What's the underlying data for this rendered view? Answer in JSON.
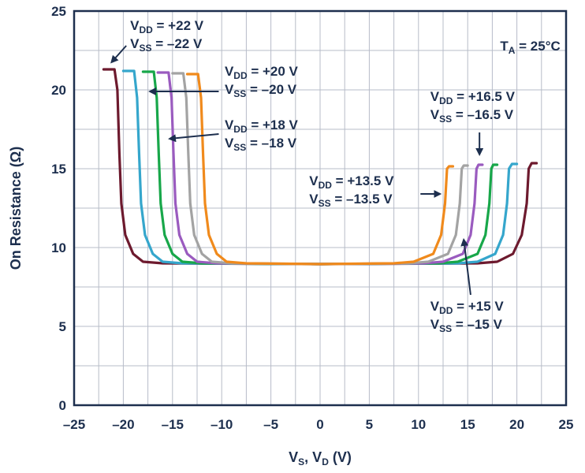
{
  "chart_data": {
    "type": "line",
    "xlabel": {
      "main": "V",
      "sub1": "S",
      "mid": ", V",
      "sub2": "D",
      "unit": " (V)"
    },
    "ylabel": "On Resistance (Ω)",
    "xlim": [
      -25,
      25
    ],
    "ylim": [
      0,
      25
    ],
    "xticks": [
      -25,
      -20,
      -15,
      -10,
      -5,
      0,
      5,
      10,
      15,
      20,
      25
    ],
    "xtick_labels": [
      "–25",
      "–20",
      "–15",
      "–10",
      "–5",
      "0",
      "5",
      "10",
      "15",
      "20",
      "25"
    ],
    "yticks": [
      0,
      5,
      10,
      15,
      20,
      25
    ],
    "ytick_labels": [
      "0",
      "5",
      "10",
      "15",
      "20",
      "25"
    ],
    "grid": true,
    "temperature": {
      "main": "T",
      "sub": "A",
      "rest": " = 25°C"
    },
    "series": [
      {
        "supply": 22,
        "color": "#6d1a2e",
        "points": [
          [
            -22,
            21.3
          ],
          [
            -20.9,
            21.3
          ],
          [
            -20.6,
            20.0
          ],
          [
            -20.4,
            16.0
          ],
          [
            -20.2,
            12.8
          ],
          [
            -19.8,
            10.8
          ],
          [
            -19.0,
            9.6
          ],
          [
            -18.0,
            9.1
          ],
          [
            -16.0,
            9.0
          ],
          [
            0,
            8.95
          ],
          [
            16.0,
            9.0
          ],
          [
            18.0,
            9.1
          ],
          [
            19.6,
            9.6
          ],
          [
            20.5,
            10.8
          ],
          [
            21.0,
            12.8
          ],
          [
            21.2,
            15.0
          ],
          [
            21.5,
            15.35
          ],
          [
            22,
            15.35
          ]
        ]
      },
      {
        "supply": 20,
        "color": "#35a6cc",
        "points": [
          [
            -20,
            21.2
          ],
          [
            -18.9,
            21.2
          ],
          [
            -18.6,
            19.5
          ],
          [
            -18.4,
            16.0
          ],
          [
            -18.2,
            12.8
          ],
          [
            -17.8,
            10.8
          ],
          [
            -17.0,
            9.6
          ],
          [
            -16.0,
            9.1
          ],
          [
            -14.0,
            9.0
          ],
          [
            0,
            8.95
          ],
          [
            14.0,
            9.0
          ],
          [
            16.0,
            9.1
          ],
          [
            17.8,
            9.6
          ],
          [
            18.6,
            10.8
          ],
          [
            19.0,
            12.8
          ],
          [
            19.2,
            15.0
          ],
          [
            19.5,
            15.3
          ],
          [
            20,
            15.3
          ]
        ]
      },
      {
        "supply": 18,
        "color": "#18a74a",
        "points": [
          [
            -18,
            21.15
          ],
          [
            -16.9,
            21.15
          ],
          [
            -16.6,
            19.5
          ],
          [
            -16.4,
            16.0
          ],
          [
            -16.2,
            12.8
          ],
          [
            -15.8,
            10.8
          ],
          [
            -15.0,
            9.6
          ],
          [
            -14.0,
            9.1
          ],
          [
            -12.0,
            9.0
          ],
          [
            0,
            8.95
          ],
          [
            12.0,
            9.0
          ],
          [
            14.0,
            9.1
          ],
          [
            16.0,
            9.6
          ],
          [
            16.8,
            10.8
          ],
          [
            17.2,
            12.8
          ],
          [
            17.4,
            15.0
          ],
          [
            17.6,
            15.25
          ],
          [
            18,
            15.25
          ]
        ]
      },
      {
        "supply": 16.5,
        "color": "#9a5bbf",
        "points": [
          [
            -16.5,
            21.1
          ],
          [
            -15.4,
            21.1
          ],
          [
            -15.1,
            19.5
          ],
          [
            -14.9,
            16.0
          ],
          [
            -14.7,
            12.8
          ],
          [
            -14.3,
            10.8
          ],
          [
            -13.5,
            9.6
          ],
          [
            -12.5,
            9.1
          ],
          [
            -10.5,
            9.0
          ],
          [
            0,
            8.95
          ],
          [
            10.5,
            9.0
          ],
          [
            12.5,
            9.1
          ],
          [
            14.5,
            9.6
          ],
          [
            15.3,
            10.8
          ],
          [
            15.7,
            12.8
          ],
          [
            15.9,
            15.0
          ],
          [
            16.1,
            15.25
          ],
          [
            16.5,
            15.25
          ]
        ]
      },
      {
        "supply": 15,
        "color": "#a3a3a3",
        "points": [
          [
            -15,
            21.05
          ],
          [
            -13.9,
            21.05
          ],
          [
            -13.6,
            19.5
          ],
          [
            -13.4,
            16.0
          ],
          [
            -13.2,
            12.8
          ],
          [
            -12.8,
            10.8
          ],
          [
            -12.0,
            9.6
          ],
          [
            -11.0,
            9.1
          ],
          [
            -9.0,
            9.0
          ],
          [
            0,
            8.95
          ],
          [
            9.0,
            9.0
          ],
          [
            11.0,
            9.1
          ],
          [
            13.0,
            9.6
          ],
          [
            13.8,
            10.8
          ],
          [
            14.2,
            12.8
          ],
          [
            14.4,
            15.0
          ],
          [
            14.6,
            15.2
          ],
          [
            15,
            15.2
          ]
        ]
      },
      {
        "supply": 13.5,
        "color": "#f08a1c",
        "points": [
          [
            -13.5,
            21.0
          ],
          [
            -12.4,
            21.0
          ],
          [
            -12.1,
            19.5
          ],
          [
            -11.9,
            16.0
          ],
          [
            -11.7,
            12.8
          ],
          [
            -11.3,
            10.8
          ],
          [
            -10.5,
            9.6
          ],
          [
            -9.5,
            9.1
          ],
          [
            -7.5,
            9.0
          ],
          [
            0,
            8.95
          ],
          [
            7.5,
            9.0
          ],
          [
            9.5,
            9.1
          ],
          [
            11.5,
            9.6
          ],
          [
            12.3,
            10.8
          ],
          [
            12.7,
            12.8
          ],
          [
            12.9,
            15.0
          ],
          [
            13.1,
            15.15
          ],
          [
            13.5,
            15.15
          ]
        ]
      }
    ],
    "annotations": [
      {
        "vdd": "+22 V",
        "vss": "–22 V",
        "x": -19.3,
        "y": 23.8,
        "arrow": [
          [
            -19.7,
            22.8
          ],
          [
            -21.2,
            21.75
          ]
        ]
      },
      {
        "vdd": "+20 V",
        "vss": "–20 V",
        "x": -9.7,
        "y": 20.9,
        "arrow": [
          [
            -10.3,
            19.9
          ],
          [
            -17.3,
            19.9
          ]
        ]
      },
      {
        "vdd": "+18 V",
        "vss": "–18 V",
        "x": -9.7,
        "y": 17.5,
        "arrow": [
          [
            -10.3,
            17.2
          ],
          [
            -15.3,
            16.9
          ]
        ]
      },
      {
        "vdd": "+16.5 V",
        "vss": "–16.5 V",
        "x": 11.2,
        "y": 19.3,
        "arrow": [
          [
            16.2,
            17.3
          ],
          [
            16.2,
            15.9
          ]
        ]
      },
      {
        "vdd": "+13.5 V",
        "vss": "–13.5 V",
        "x": -1.1,
        "y": 13.95,
        "arrow": [
          [
            10.2,
            13.4
          ],
          [
            12.2,
            13.4
          ]
        ]
      },
      {
        "vdd": "+15 V",
        "vss": "–15 V",
        "x": 11.2,
        "y": 6.0,
        "arrow": [
          [
            15.3,
            7.0
          ],
          [
            14.6,
            10.5
          ]
        ]
      }
    ]
  }
}
